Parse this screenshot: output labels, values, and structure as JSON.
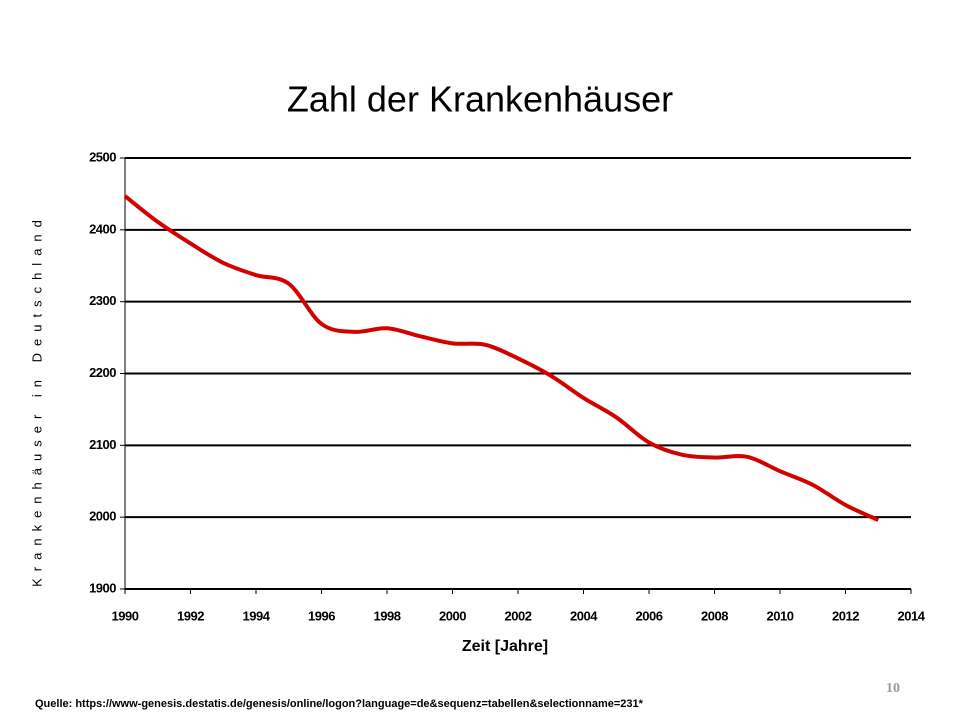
{
  "chart_data": {
    "type": "line",
    "title": "Zahl der Krankenhäuser",
    "y_label": "Krankenhäuser in Deutschland",
    "x_label": "Zeit [Jahre]",
    "x": [
      1990,
      1991,
      1992,
      1993,
      1994,
      1995,
      1996,
      1997,
      1998,
      1999,
      2000,
      2001,
      2002,
      2003,
      2004,
      2005,
      2006,
      2007,
      2008,
      2009,
      2010,
      2011,
      2012,
      2013
    ],
    "values": [
      2447,
      2411,
      2381,
      2354,
      2337,
      2325,
      2269,
      2258,
      2263,
      2252,
      2242,
      2240,
      2221,
      2197,
      2166,
      2139,
      2104,
      2087,
      2083,
      2084,
      2064,
      2045,
      2017,
      1996
    ],
    "color": "#d40000",
    "xlim": [
      1990,
      2014
    ],
    "xticks": [
      1990,
      1992,
      1994,
      1996,
      1998,
      2000,
      2002,
      2004,
      2006,
      2008,
      2010,
      2012,
      2014
    ],
    "ylim": [
      1900,
      2500
    ],
    "yticks": [
      1900,
      2000,
      2100,
      2200,
      2300,
      2400,
      2500
    ],
    "grid": true,
    "source": "Quelle: https://www-genesis.destatis.de/genesis/online/logon?language=de&sequenz=tabellen&selectionname=231*",
    "page_number": "10"
  }
}
